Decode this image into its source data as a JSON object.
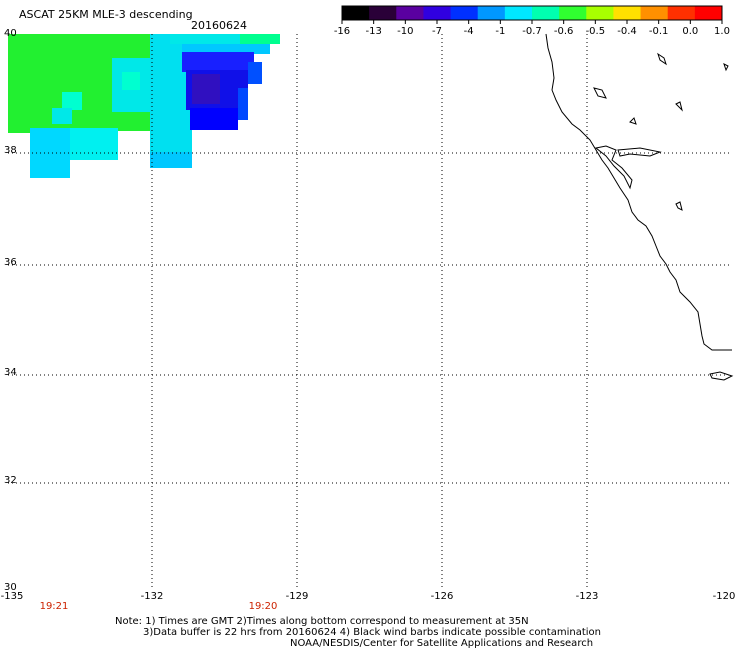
{
  "header": {
    "title": "ASCAT 25KM MLE-3 descending",
    "date": "20160624"
  },
  "colorbar": {
    "labels": [
      "-16",
      "-13",
      "-10",
      "-7",
      "-4",
      "-1",
      "-0.7",
      "-0.6",
      "-0.5",
      "-0.4",
      "-0.1",
      "0.0",
      "1.0"
    ],
    "colors": [
      "#000000",
      "#2a0038",
      "#5a00a0",
      "#3000e0",
      "#0030ff",
      "#0098ff",
      "#00e8ff",
      "#00ffb0",
      "#30ff30",
      "#a8ff00",
      "#ffe000",
      "#ff9000",
      "#ff3000",
      "#ff0000"
    ]
  },
  "map": {
    "lat_labels": [
      "40",
      "38",
      "36",
      "34",
      "32",
      "30"
    ],
    "lon_labels": [
      "-135",
      "-132",
      "-129",
      "-126",
      "-123",
      "-120"
    ],
    "times": [
      "19:21",
      "19:20"
    ],
    "time_color": "#cc2200"
  },
  "notes": {
    "line1": "Note: 1) Times are GMT 2)Times along bottom correspond to measurement at 35N",
    "line2": "3)Data buffer is 22 hrs from 20160624 4) Black wind barbs indicate possible contamination",
    "line3": "NOAA/NESDIS/Center for Satellite Applications and Research"
  }
}
